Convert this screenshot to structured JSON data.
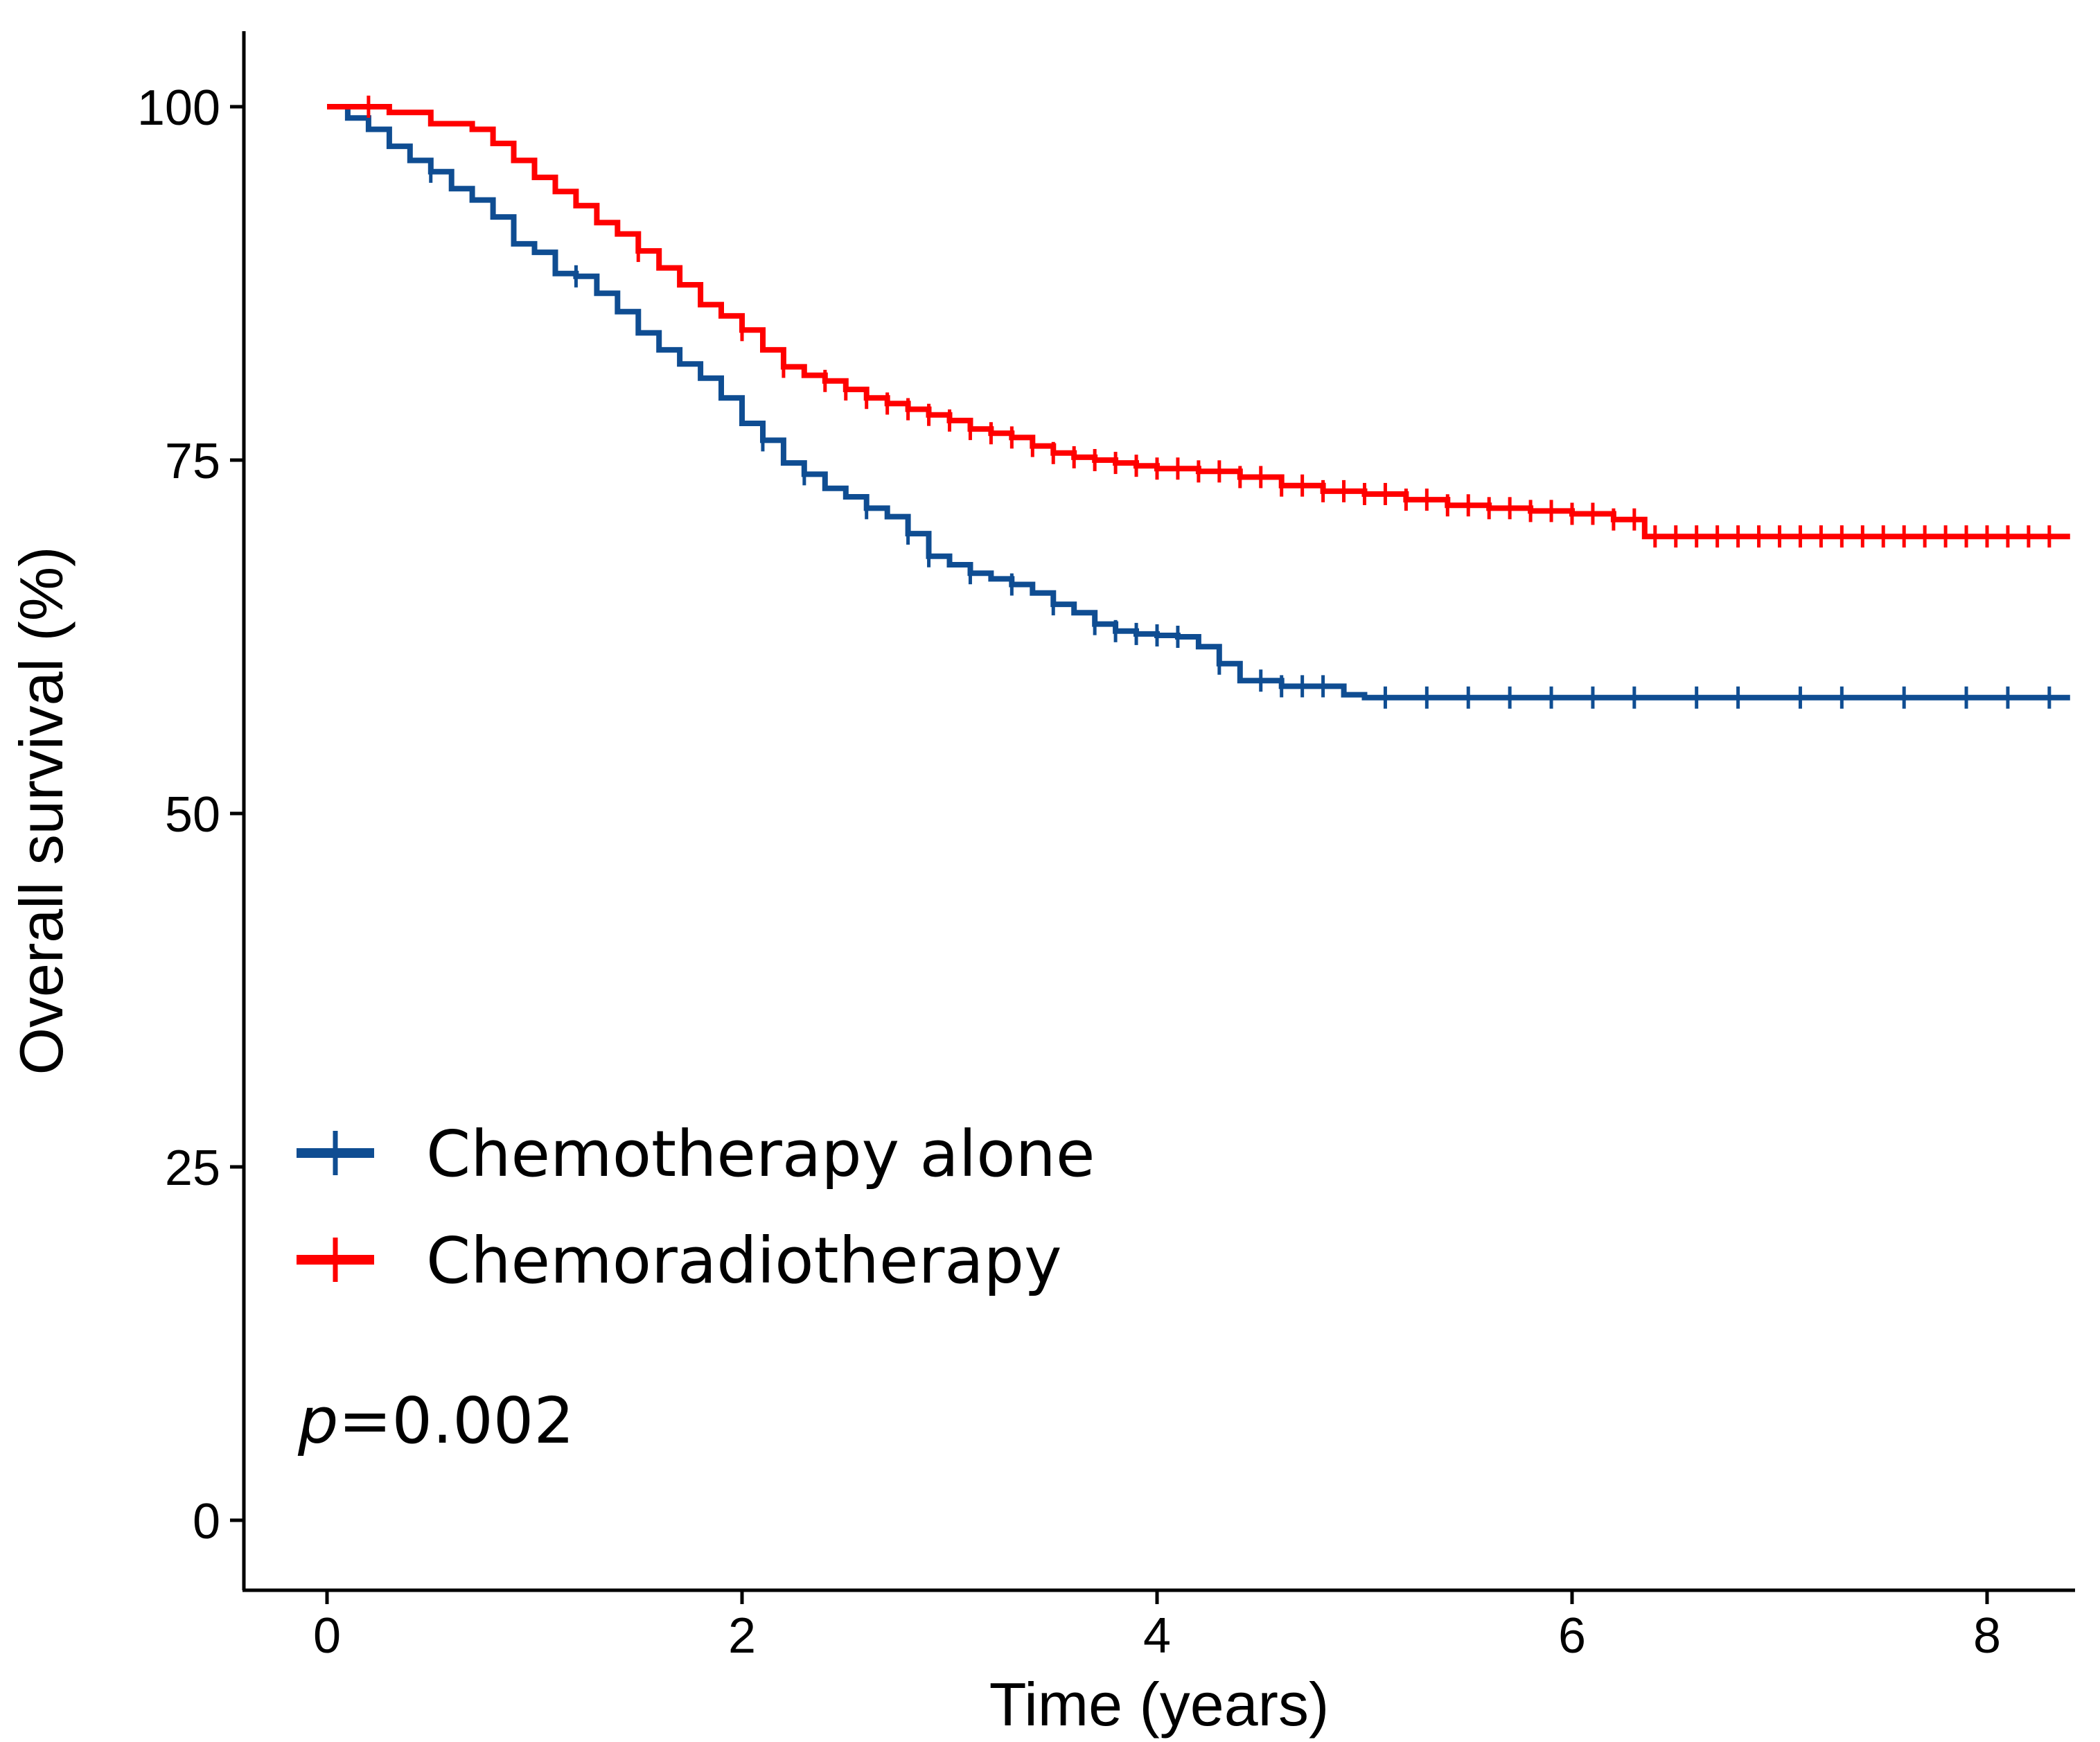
{
  "chart_data": {
    "type": "line",
    "subtype": "kaplan-meier",
    "title": "",
    "xlabel": "Time (years)",
    "ylabel": "Overall survival (%)",
    "xlim": [
      0,
      8.4
    ],
    "ylim": [
      0,
      100
    ],
    "xticks": [
      0,
      2,
      4,
      6,
      8
    ],
    "xtick_labels": [
      "0",
      "2",
      "4",
      "6",
      "8"
    ],
    "yticks": [
      0,
      25,
      50,
      75,
      100
    ],
    "ytick_labels": [
      "0",
      "25",
      "50",
      "75",
      "100"
    ],
    "grid": false,
    "legend_position": "bottom-left",
    "annotation": {
      "prefix": "p",
      "value": "=0.002"
    },
    "series": [
      {
        "name": "Chemotherapy alone",
        "color": "#0f4d92",
        "steps": [
          [
            0,
            100
          ],
          [
            0.1,
            99.2
          ],
          [
            0.2,
            98.4
          ],
          [
            0.3,
            97.2
          ],
          [
            0.4,
            96.2
          ],
          [
            0.5,
            95.4
          ],
          [
            0.6,
            94.2
          ],
          [
            0.7,
            93.4
          ],
          [
            0.8,
            92.2
          ],
          [
            0.9,
            90.3
          ],
          [
            1.0,
            89.7
          ],
          [
            1.1,
            88.2
          ],
          [
            1.2,
            88.0
          ],
          [
            1.3,
            86.8
          ],
          [
            1.4,
            85.5
          ],
          [
            1.5,
            84.0
          ],
          [
            1.6,
            82.8
          ],
          [
            1.7,
            81.8
          ],
          [
            1.8,
            80.8
          ],
          [
            1.9,
            79.4
          ],
          [
            2.0,
            77.6
          ],
          [
            2.1,
            76.4
          ],
          [
            2.2,
            74.8
          ],
          [
            2.3,
            74.0
          ],
          [
            2.4,
            73.0
          ],
          [
            2.5,
            72.4
          ],
          [
            2.6,
            71.6
          ],
          [
            2.7,
            71.0
          ],
          [
            2.8,
            69.8
          ],
          [
            2.9,
            68.2
          ],
          [
            3.0,
            67.6
          ],
          [
            3.1,
            67.0
          ],
          [
            3.2,
            66.6
          ],
          [
            3.3,
            66.2
          ],
          [
            3.4,
            65.6
          ],
          [
            3.5,
            64.8
          ],
          [
            3.6,
            64.2
          ],
          [
            3.7,
            63.4
          ],
          [
            3.8,
            62.9
          ],
          [
            3.9,
            62.7
          ],
          [
            4.0,
            62.6
          ],
          [
            4.1,
            62.5
          ],
          [
            4.2,
            61.8
          ],
          [
            4.3,
            60.6
          ],
          [
            4.4,
            59.4
          ],
          [
            4.6,
            59.0
          ],
          [
            4.8,
            59.0
          ],
          [
            4.9,
            58.4
          ],
          [
            5.0,
            58.2
          ],
          [
            8.4,
            58.2
          ]
        ],
        "censor_times": [
          0.5,
          1.2,
          2.1,
          2.3,
          2.6,
          2.8,
          2.9,
          3.1,
          3.3,
          3.5,
          3.7,
          3.8,
          3.9,
          4.0,
          4.1,
          4.3,
          4.5,
          4.6,
          4.7,
          4.8,
          5.1,
          5.3,
          5.5,
          5.7,
          5.9,
          6.1,
          6.3,
          6.6,
          6.8,
          7.1,
          7.3,
          7.6,
          7.9,
          8.1,
          8.3
        ]
      },
      {
        "name": "Chemoradiotherapy",
        "color": "#ff0000",
        "steps": [
          [
            0,
            100
          ],
          [
            0.3,
            99.6
          ],
          [
            0.5,
            98.8
          ],
          [
            0.7,
            98.4
          ],
          [
            0.8,
            97.4
          ],
          [
            0.9,
            96.2
          ],
          [
            1.0,
            95.0
          ],
          [
            1.1,
            94.0
          ],
          [
            1.2,
            93.0
          ],
          [
            1.3,
            91.8
          ],
          [
            1.4,
            91.0
          ],
          [
            1.5,
            89.8
          ],
          [
            1.6,
            88.6
          ],
          [
            1.7,
            87.4
          ],
          [
            1.8,
            86.0
          ],
          [
            1.9,
            85.2
          ],
          [
            2.0,
            84.2
          ],
          [
            2.1,
            82.8
          ],
          [
            2.2,
            81.6
          ],
          [
            2.3,
            81.0
          ],
          [
            2.4,
            80.6
          ],
          [
            2.5,
            80.0
          ],
          [
            2.6,
            79.4
          ],
          [
            2.7,
            79.0
          ],
          [
            2.8,
            78.6
          ],
          [
            2.9,
            78.2
          ],
          [
            3.0,
            77.8
          ],
          [
            3.1,
            77.2
          ],
          [
            3.2,
            76.9
          ],
          [
            3.3,
            76.6
          ],
          [
            3.4,
            76.0
          ],
          [
            3.5,
            75.5
          ],
          [
            3.6,
            75.2
          ],
          [
            3.7,
            75.0
          ],
          [
            3.8,
            74.8
          ],
          [
            3.9,
            74.6
          ],
          [
            4.0,
            74.4
          ],
          [
            4.2,
            74.2
          ],
          [
            4.4,
            73.8
          ],
          [
            4.6,
            73.2
          ],
          [
            4.8,
            72.8
          ],
          [
            5.0,
            72.6
          ],
          [
            5.2,
            72.2
          ],
          [
            5.4,
            71.8
          ],
          [
            5.6,
            71.6
          ],
          [
            5.8,
            71.4
          ],
          [
            6.0,
            71.2
          ],
          [
            6.2,
            70.8
          ],
          [
            6.35,
            69.6
          ],
          [
            8.4,
            69.6
          ]
        ],
        "censor_times": [
          0.2,
          1.5,
          2.0,
          2.2,
          2.4,
          2.5,
          2.6,
          2.7,
          2.8,
          2.9,
          3.0,
          3.1,
          3.2,
          3.3,
          3.4,
          3.5,
          3.6,
          3.7,
          3.8,
          3.9,
          4.0,
          4.1,
          4.2,
          4.3,
          4.4,
          4.5,
          4.6,
          4.7,
          4.8,
          4.9,
          5.0,
          5.1,
          5.2,
          5.3,
          5.4,
          5.5,
          5.6,
          5.7,
          5.8,
          5.9,
          6.0,
          6.1,
          6.2,
          6.3,
          6.4,
          6.5,
          6.6,
          6.7,
          6.8,
          6.9,
          7.0,
          7.1,
          7.2,
          7.3,
          7.4,
          7.5,
          7.6,
          7.7,
          7.8,
          7.9,
          8.0,
          8.1,
          8.2,
          8.3
        ]
      }
    ]
  }
}
